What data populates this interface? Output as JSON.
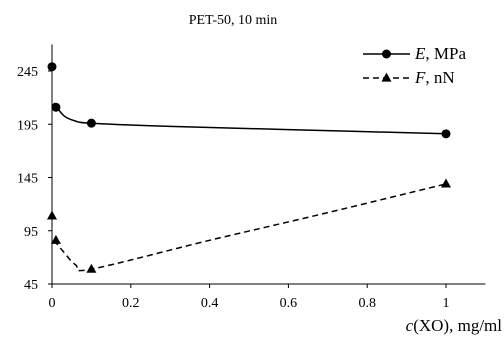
{
  "chart_data": {
    "type": "line",
    "title": "PET-50, 10 min",
    "xlabel": "c(XO), mg/ml",
    "ylabel": "",
    "xlim": [
      0,
      1.1
    ],
    "ylim": [
      45,
      270
    ],
    "x_ticks": [
      "0",
      "0.2",
      "0.4",
      "0.6",
      "0.8",
      "1"
    ],
    "y_ticks": [
      "45",
      "95",
      "145",
      "195",
      "245"
    ],
    "grid": false,
    "legend_position": "top-right",
    "series": [
      {
        "name": "E, MPa",
        "line_style": "solid",
        "marker": "circle",
        "x": [
          0,
          0.01,
          0.1,
          1
        ],
        "y": [
          249,
          211,
          196,
          186
        ],
        "curve": [
          [
            0.005,
            215
          ],
          [
            0.03,
            203
          ],
          [
            0.06,
            198
          ],
          [
            0.1,
            196
          ],
          [
            0.3,
            193
          ],
          [
            0.6,
            190
          ],
          [
            1,
            186
          ]
        ]
      },
      {
        "name": "F, nN",
        "line_style": "dashed",
        "marker": "triangle",
        "x": [
          0,
          0.01,
          0.1,
          1
        ],
        "y": [
          109,
          86,
          59,
          139
        ],
        "curve": [
          [
            0.005,
            86
          ],
          [
            0.03,
            75
          ],
          [
            0.06,
            63
          ],
          [
            0.1,
            59
          ],
          [
            0.4,
            86
          ],
          [
            0.7,
            112
          ],
          [
            1,
            139
          ]
        ]
      }
    ]
  }
}
